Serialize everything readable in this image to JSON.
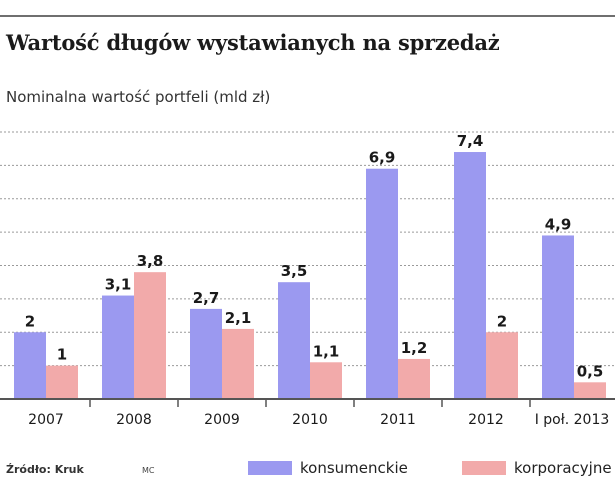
{
  "title": "Wartość długów wystawianych na sprzedaż",
  "subtitle": "Nominalna wartość portfeli (mld zł)",
  "footer": {
    "source": "Źródło: Kruk",
    "author": "MC"
  },
  "colors": {
    "konsumenckie": "#9b99f0",
    "korporacyjne": "#f2aaaa",
    "grid": "#9a9a9a",
    "axis": "#555555"
  },
  "chart_data": {
    "type": "bar",
    "categories": [
      "2007",
      "2008",
      "2009",
      "2010",
      "2011",
      "2012",
      "I poł. 2013"
    ],
    "series": [
      {
        "name": "konsumenckie",
        "values": [
          2,
          3.1,
          2.7,
          3.5,
          6.9,
          7.4,
          4.9
        ],
        "labels": [
          "2",
          "3,1",
          "2,7",
          "3,5",
          "6,9",
          "7,4",
          "4,9"
        ]
      },
      {
        "name": "korporacyjne",
        "values": [
          1,
          3.8,
          2.1,
          1.1,
          1.2,
          2,
          0.5
        ],
        "labels": [
          "1",
          "3,8",
          "2,1",
          "1,1",
          "1,2",
          "2",
          "0,5"
        ]
      }
    ],
    "ylim": [
      0,
      8
    ],
    "grid": true,
    "legend": "bottom"
  }
}
